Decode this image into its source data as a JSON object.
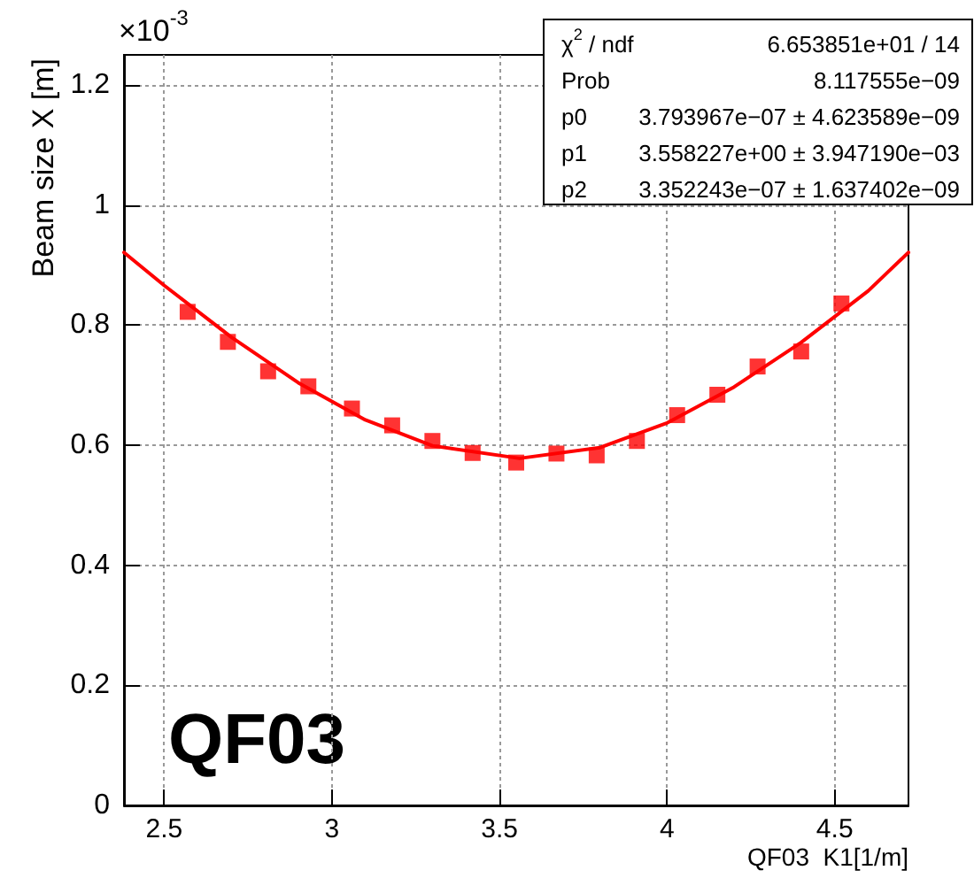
{
  "chart_data": {
    "type": "scatter",
    "xlabel": "QF03  K1[1/m]",
    "ylabel": "Beam size X [m]",
    "annotations": [
      "×10$^{-3}$",
      "QF03",
      "χ$^{2}$ / ndf",
      "6.653851e+01 / 14",
      "Prob",
      "8.117555e−09",
      "p0",
      "3.793967e−07 ± 4.623589e−09",
      "p1",
      "3.558227e+00 ± 3.947190e−03",
      "p2",
      "3.352243e−07 ± 1.637402e−09"
    ],
    "xlim": [
      2.38,
      4.72
    ],
    "xticks": [
      2.5,
      3,
      3.5,
      4,
      4.5
    ],
    "ylim": [
      0,
      1.25
    ],
    "yticks": [
      0,
      0.2,
      0.4,
      0.6,
      0.8,
      1,
      1.2
    ],
    "grid": true,
    "series": [
      {
        "marker": "square",
        "color": "#ff0000",
        "x": [
          2.57,
          2.69,
          2.81,
          2.93,
          3.06,
          3.18,
          3.3,
          3.42,
          3.55,
          3.67,
          3.79,
          3.91,
          4.03,
          4.15,
          4.27,
          4.4,
          4.52
        ],
        "values": [
          0.822,
          0.772,
          0.723,
          0.698,
          0.661,
          0.633,
          0.607,
          0.587,
          0.571,
          0.586,
          0.583,
          0.607,
          0.65,
          0.684,
          0.731,
          0.756,
          0.836
        ]
      },
      {
        "type": "line",
        "marker": "none",
        "color": "#ff0000",
        "x": [
          2.38,
          2.5,
          2.7,
          2.9,
          3.1,
          3.3,
          3.56,
          3.8,
          4.0,
          4.2,
          4.4,
          4.6,
          4.72
        ],
        "values": [
          0.921,
          0.866,
          0.78,
          0.704,
          0.642,
          0.599,
          0.578,
          0.596,
          0.637,
          0.697,
          0.771,
          0.857,
          0.921
        ]
      }
    ]
  }
}
